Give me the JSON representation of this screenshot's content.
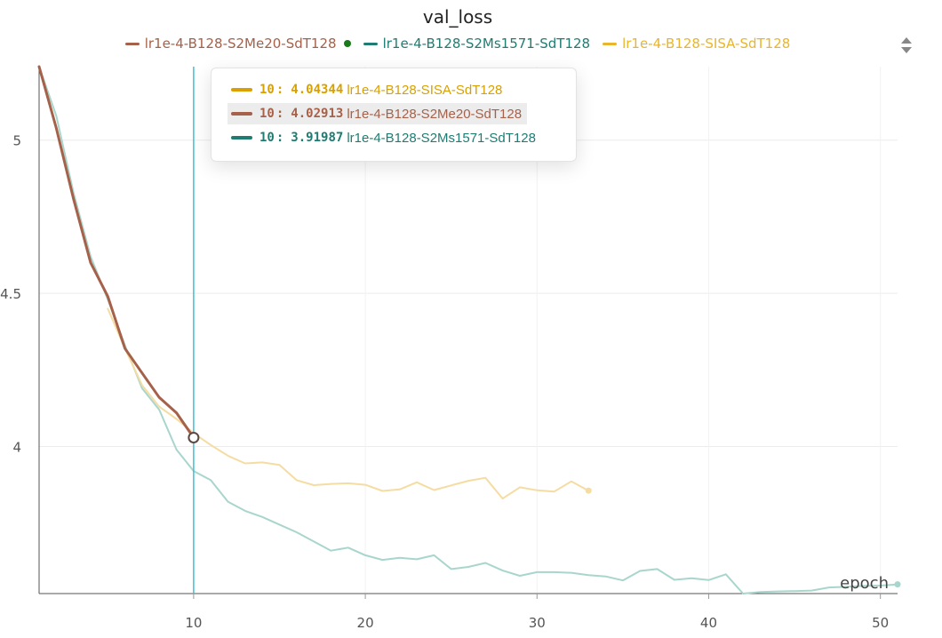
{
  "colors": {
    "s2me20": "#a5614a",
    "s2ms1571": "#1f7c72",
    "s2ms1571_faint": "#a8d6cc",
    "sisa": "#d9a000",
    "sisa_legend": "#e8b52c",
    "sisa_faint": "#f5dca2",
    "cursor_line": "#3cc2d6",
    "legend_dot": "#1a7a1a"
  },
  "legend": {
    "icon": "sort-arrows-icon",
    "items": [
      {
        "label": "lr1e-4-B128-S2Me20-SdT128",
        "color_key": "s2me20",
        "dot": true
      },
      {
        "label": "lr1e-4-B128-S2Ms1571-SdT128",
        "color_key": "s2ms1571",
        "dot": false
      },
      {
        "label": "lr1e-4-B128-SISA-SdT128",
        "color_key": "sisa_legend",
        "dot": false
      }
    ]
  },
  "tooltip": {
    "rows": [
      {
        "x": "10",
        "value": "4.04344",
        "run": "lr1e-4-B128-SISA-SdT128",
        "color_key": "sisa",
        "highlight": false
      },
      {
        "x": "10",
        "value": "4.02913",
        "run": "lr1e-4-B128-S2Me20-SdT128",
        "color_key": "s2me20",
        "highlight": true
      },
      {
        "x": "10",
        "value": "3.91987",
        "run": "lr1e-4-B128-S2Ms1571-SdT128",
        "color_key": "s2ms1571",
        "highlight": false
      }
    ]
  },
  "chart_data": {
    "type": "line",
    "title": "val_loss",
    "xlabel": "epoch",
    "ylabel": "",
    "xlim": [
      1,
      51
    ],
    "ylim": [
      3.52,
      5.24
    ],
    "x_ticks": [
      10,
      20,
      30,
      40,
      50
    ],
    "y_ticks": [
      4,
      4.5,
      5
    ],
    "y_tick_labels": [
      "4",
      "4.5",
      "5"
    ],
    "grid": true,
    "legend_position": "top",
    "cursor_x": 10,
    "series": [
      {
        "name": "lr1e-4-B128-S2Ms1571-SdT128",
        "color_key": "s2ms1571_faint",
        "x": [
          1,
          2,
          3,
          4,
          5,
          6,
          7,
          8,
          9,
          10,
          11,
          12,
          13,
          14,
          15,
          16,
          17,
          18,
          19,
          20,
          21,
          22,
          23,
          24,
          25,
          26,
          27,
          28,
          29,
          30,
          31,
          32,
          33,
          34,
          35,
          36,
          37,
          38,
          39,
          40,
          41,
          42,
          43,
          44,
          45,
          46,
          47,
          48,
          49,
          50,
          51
        ],
        "values": [
          5.24,
          5.08,
          4.83,
          4.62,
          4.48,
          4.33,
          4.19,
          4.12,
          3.99,
          3.92,
          3.89,
          3.82,
          3.79,
          3.77,
          3.745,
          3.72,
          3.69,
          3.66,
          3.67,
          3.645,
          3.63,
          3.637,
          3.632,
          3.645,
          3.6,
          3.607,
          3.62,
          3.595,
          3.578,
          3.59,
          3.59,
          3.588,
          3.58,
          3.576,
          3.563,
          3.594,
          3.6,
          3.565,
          3.57,
          3.564,
          3.583,
          3.52,
          3.525,
          3.527,
          3.528,
          3.53,
          3.54,
          3.542,
          3.545,
          3.546,
          3.55
        ]
      },
      {
        "name": "lr1e-4-B128-SISA-SdT128",
        "color_key": "sisa_faint",
        "x": [
          5,
          6,
          7,
          8,
          9,
          10,
          11,
          12,
          13,
          14,
          15,
          16,
          17,
          18,
          19,
          20,
          21,
          22,
          23,
          24,
          25,
          26,
          27,
          28,
          29,
          30,
          31,
          32,
          33
        ],
        "values": [
          4.45,
          4.32,
          4.2,
          4.13,
          4.09,
          4.04344,
          4.005,
          3.97,
          3.945,
          3.948,
          3.94,
          3.89,
          3.874,
          3.878,
          3.88,
          3.875,
          3.855,
          3.86,
          3.883,
          3.858,
          3.873,
          3.888,
          3.898,
          3.83,
          3.867,
          3.857,
          3.853,
          3.886,
          3.856
        ]
      },
      {
        "name": "lr1e-4-B128-S2Me20-SdT128",
        "color_key": "s2me20",
        "x": [
          1,
          2,
          3,
          4,
          5,
          6,
          7,
          8,
          9,
          10
        ],
        "values": [
          5.24,
          5.04,
          4.81,
          4.6,
          4.49,
          4.32,
          4.24,
          4.16,
          4.11,
          4.02913
        ]
      }
    ]
  }
}
